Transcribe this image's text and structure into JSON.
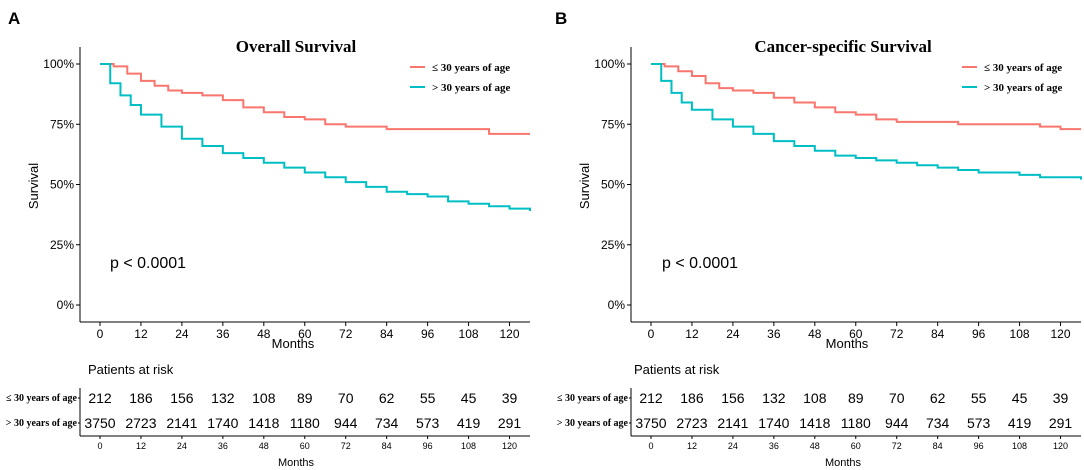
{
  "colors": {
    "young": "#f8766d",
    "old": "#00bfc4",
    "axis": "#000000"
  },
  "chart_data": [
    {
      "panel": "A",
      "type": "line",
      "title": "Overall Survival",
      "xlabel": "Months",
      "ylabel": "Survival",
      "xlim": [
        0,
        126
      ],
      "ylim": [
        0,
        100
      ],
      "xticks": [
        0,
        12,
        24,
        36,
        48,
        60,
        72,
        84,
        96,
        108,
        120
      ],
      "yticks": [
        0,
        25,
        50,
        75,
        100
      ],
      "ytick_labels": [
        "0%",
        "25%",
        "50%",
        "75%",
        "100%"
      ],
      "pvalue": "p < 0.0001",
      "legend_position": "top-right",
      "series": [
        {
          "name": "≤ 30 years of age",
          "color": "#f8766d",
          "x": [
            0,
            4,
            8,
            12,
            16,
            20,
            24,
            30,
            36,
            42,
            48,
            54,
            60,
            66,
            72,
            78,
            84,
            90,
            96,
            102,
            108,
            114,
            120,
            126
          ],
          "y": [
            100,
            99,
            96,
            93,
            91,
            89,
            88,
            87,
            85,
            82,
            80,
            78,
            77,
            75,
            74,
            74,
            73,
            73,
            73,
            73,
            73,
            71,
            71,
            71
          ]
        },
        {
          "name": "> 30 years of age",
          "color": "#00bfc4",
          "x": [
            0,
            3,
            6,
            9,
            12,
            18,
            24,
            30,
            36,
            42,
            48,
            54,
            60,
            66,
            72,
            78,
            84,
            90,
            96,
            102,
            108,
            114,
            120,
            126
          ],
          "y": [
            100,
            92,
            87,
            83,
            79,
            74,
            69,
            66,
            63,
            61,
            59,
            57,
            55,
            53,
            51,
            49,
            47,
            46,
            45,
            43,
            42,
            41,
            40,
            39
          ]
        }
      ],
      "risk_table": {
        "title": "Patients at risk",
        "xlabel": "Months",
        "rows": [
          {
            "label": "≤ 30 years of age",
            "values": [
              "212",
              "186",
              "156",
              "132",
              "108",
              "89",
              "70",
              "62",
              "55",
              "45",
              "39"
            ]
          },
          {
            "label": "> 30 years of age",
            "values": [
              "3750",
              "2723",
              "2141",
              "1740",
              "1418",
              "1180",
              "944",
              "734",
              "573",
              "419",
              "291"
            ]
          }
        ]
      }
    },
    {
      "panel": "B",
      "type": "line",
      "title": "Cancer-specific Survival",
      "xlabel": "Months",
      "ylabel": "Survival",
      "xlim": [
        0,
        126
      ],
      "ylim": [
        0,
        100
      ],
      "xticks": [
        0,
        12,
        24,
        36,
        48,
        60,
        72,
        84,
        96,
        108,
        120
      ],
      "yticks": [
        0,
        25,
        50,
        75,
        100
      ],
      "ytick_labels": [
        "0%",
        "25%",
        "50%",
        "75%",
        "100%"
      ],
      "pvalue": "p < 0.0001",
      "legend_position": "top-right",
      "series": [
        {
          "name": "≤ 30 years of age",
          "color": "#f8766d",
          "x": [
            0,
            4,
            8,
            12,
            16,
            20,
            24,
            30,
            36,
            42,
            48,
            54,
            60,
            66,
            72,
            78,
            84,
            90,
            96,
            102,
            108,
            114,
            120,
            126
          ],
          "y": [
            100,
            99,
            97,
            95,
            92,
            90,
            89,
            88,
            86,
            84,
            82,
            80,
            79,
            77,
            76,
            76,
            76,
            75,
            75,
            75,
            75,
            74,
            73,
            73
          ]
        },
        {
          "name": "> 30 years of age",
          "color": "#00bfc4",
          "x": [
            0,
            3,
            6,
            9,
            12,
            18,
            24,
            30,
            36,
            42,
            48,
            54,
            60,
            66,
            72,
            78,
            84,
            90,
            96,
            102,
            108,
            114,
            120,
            126
          ],
          "y": [
            100,
            93,
            88,
            84,
            81,
            77,
            74,
            71,
            68,
            66,
            64,
            62,
            61,
            60,
            59,
            58,
            57,
            56,
            55,
            55,
            54,
            53,
            53,
            52
          ]
        }
      ],
      "risk_table": {
        "title": "Patients at risk",
        "xlabel": "Months",
        "rows": [
          {
            "label": "≤ 30 years of age",
            "values": [
              "212",
              "186",
              "156",
              "132",
              "108",
              "89",
              "70",
              "62",
              "55",
              "45",
              "39"
            ]
          },
          {
            "label": "> 30 years of age",
            "values": [
              "3750",
              "2723",
              "2141",
              "1740",
              "1418",
              "1180",
              "944",
              "734",
              "573",
              "419",
              "291"
            ]
          }
        ]
      }
    }
  ]
}
